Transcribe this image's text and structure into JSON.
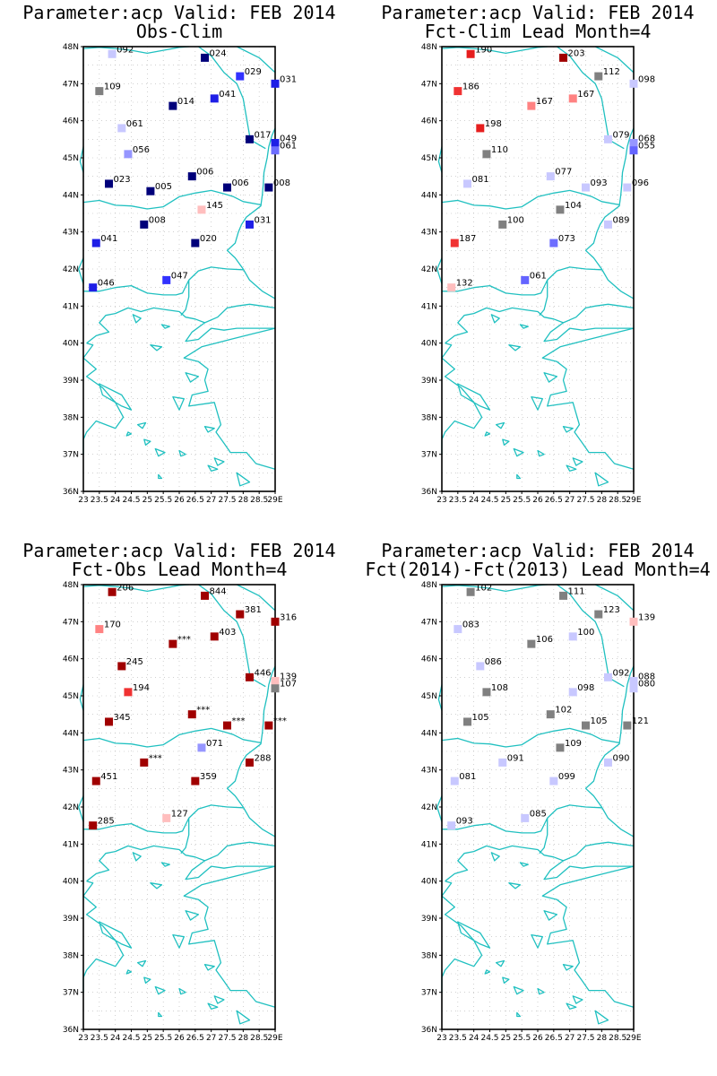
{
  "map": {
    "lon_range": [
      23,
      29
    ],
    "lat_range": [
      36,
      48
    ],
    "lat_labels": [
      "36N",
      "37N",
      "38N",
      "39N",
      "40N",
      "41N",
      "42N",
      "43N",
      "44N",
      "45N",
      "46N",
      "47N",
      "48N"
    ],
    "lon_labels": [
      "23",
      "23.5",
      "24",
      "24.5",
      "25",
      "25.5",
      "26",
      "26.5",
      "27",
      "27.5",
      "28",
      "28.5",
      "29E"
    ],
    "grid": "dotted",
    "coast_color": "#20c0c0"
  },
  "panels": [
    {
      "title_line1": "Parameter:acp Valid: FEB 2014",
      "title_line2": "Obs-Clim",
      "stations": [
        {
          "lon": 23.9,
          "lat": 47.8,
          "label": "092",
          "color": "#c8c8ff"
        },
        {
          "lon": 26.8,
          "lat": 47.7,
          "label": "024",
          "color": "#00007a"
        },
        {
          "lon": 27.9,
          "lat": 47.2,
          "label": "029",
          "color": "#3232ff"
        },
        {
          "lon": 29.0,
          "lat": 47.0,
          "label": "031",
          "color": "#1e1ee6"
        },
        {
          "lon": 23.5,
          "lat": 46.8,
          "label": "109",
          "color": "#808080"
        },
        {
          "lon": 27.1,
          "lat": 46.6,
          "label": "041",
          "color": "#1e1ee6"
        },
        {
          "lon": 25.8,
          "lat": 46.4,
          "label": "014",
          "color": "#00007a"
        },
        {
          "lon": 24.2,
          "lat": 45.8,
          "label": "061",
          "color": "#c8c8ff"
        },
        {
          "lon": 28.2,
          "lat": 45.5,
          "label": "017",
          "color": "#00007a"
        },
        {
          "lon": 29.0,
          "lat": 45.4,
          "label": "049",
          "color": "#1e1ee6"
        },
        {
          "lon": 29.0,
          "lat": 45.2,
          "label": "061",
          "color": "#6e6eff"
        },
        {
          "lon": 24.4,
          "lat": 45.1,
          "label": "056",
          "color": "#9696ff"
        },
        {
          "lon": 26.4,
          "lat": 44.5,
          "label": "006",
          "color": "#00007a"
        },
        {
          "lon": 23.8,
          "lat": 44.3,
          "label": "023",
          "color": "#00007a"
        },
        {
          "lon": 25.1,
          "lat": 44.1,
          "label": "005",
          "color": "#00007a"
        },
        {
          "lon": 27.5,
          "lat": 44.2,
          "label": "006",
          "color": "#00007a"
        },
        {
          "lon": 28.8,
          "lat": 44.2,
          "label": "008",
          "color": "#00007a"
        },
        {
          "lon": 26.7,
          "lat": 43.6,
          "label": "145",
          "color": "#ffbebe"
        },
        {
          "lon": 24.9,
          "lat": 43.2,
          "label": "008",
          "color": "#00007a"
        },
        {
          "lon": 28.2,
          "lat": 43.2,
          "label": "031",
          "color": "#1e1ee6"
        },
        {
          "lon": 23.4,
          "lat": 42.7,
          "label": "041",
          "color": "#1e1ee6"
        },
        {
          "lon": 26.5,
          "lat": 42.7,
          "label": "020",
          "color": "#00007a"
        },
        {
          "lon": 25.6,
          "lat": 41.7,
          "label": "047",
          "color": "#3232ff"
        },
        {
          "lon": 23.3,
          "lat": 41.5,
          "label": "046",
          "color": "#1e1ee6"
        }
      ]
    },
    {
      "title_line1": "Parameter:acp Valid: FEB 2014",
      "title_line2": "Fct-Clim Lead Month=4",
      "stations": [
        {
          "lon": 23.9,
          "lat": 47.8,
          "label": "190",
          "color": "#e61e1e"
        },
        {
          "lon": 26.8,
          "lat": 47.7,
          "label": "203",
          "color": "#a00000"
        },
        {
          "lon": 27.9,
          "lat": 47.2,
          "label": "112",
          "color": "#808080"
        },
        {
          "lon": 29.0,
          "lat": 47.0,
          "label": "098",
          "color": "#c8c8ff"
        },
        {
          "lon": 23.5,
          "lat": 46.8,
          "label": "186",
          "color": "#f03232"
        },
        {
          "lon": 27.1,
          "lat": 46.6,
          "label": "167",
          "color": "#ff8282"
        },
        {
          "lon": 25.8,
          "lat": 46.4,
          "label": "167",
          "color": "#ff8282"
        },
        {
          "lon": 24.2,
          "lat": 45.8,
          "label": "198",
          "color": "#e61e1e"
        },
        {
          "lon": 28.2,
          "lat": 45.5,
          "label": "079",
          "color": "#c8c8ff"
        },
        {
          "lon": 29.0,
          "lat": 45.4,
          "label": "068",
          "color": "#9696ff"
        },
        {
          "lon": 29.0,
          "lat": 45.2,
          "label": "055",
          "color": "#6464ff"
        },
        {
          "lon": 24.4,
          "lat": 45.1,
          "label": "110",
          "color": "#808080"
        },
        {
          "lon": 26.4,
          "lat": 44.5,
          "label": "077",
          "color": "#c8c8ff"
        },
        {
          "lon": 23.8,
          "lat": 44.3,
          "label": "081",
          "color": "#c8c8ff"
        },
        {
          "lon": 27.5,
          "lat": 44.2,
          "label": "093",
          "color": "#c8c8ff"
        },
        {
          "lon": 28.8,
          "lat": 44.2,
          "label": "096",
          "color": "#c8c8ff"
        },
        {
          "lon": 26.7,
          "lat": 43.6,
          "label": "104",
          "color": "#808080"
        },
        {
          "lon": 24.9,
          "lat": 43.2,
          "label": "100",
          "color": "#808080"
        },
        {
          "lon": 28.2,
          "lat": 43.2,
          "label": "089",
          "color": "#c8c8ff"
        },
        {
          "lon": 23.4,
          "lat": 42.7,
          "label": "187",
          "color": "#f03232"
        },
        {
          "lon": 26.5,
          "lat": 42.7,
          "label": "073",
          "color": "#6e6eff"
        },
        {
          "lon": 25.6,
          "lat": 41.7,
          "label": "061",
          "color": "#6464ff"
        },
        {
          "lon": 23.3,
          "lat": 41.5,
          "label": "132",
          "color": "#ffbebe"
        }
      ]
    },
    {
      "title_line1": "Parameter:acp Valid: FEB 2014",
      "title_line2": "Fct-Obs Lead Month=4",
      "stations": [
        {
          "lon": 23.9,
          "lat": 47.8,
          "label": "206",
          "color": "#a00000"
        },
        {
          "lon": 26.8,
          "lat": 47.7,
          "label": "844",
          "color": "#a00000"
        },
        {
          "lon": 27.9,
          "lat": 47.2,
          "label": "381",
          "color": "#a00000"
        },
        {
          "lon": 29.0,
          "lat": 47.0,
          "label": "316",
          "color": "#a00000"
        },
        {
          "lon": 23.5,
          "lat": 46.8,
          "label": "170",
          "color": "#ff8282"
        },
        {
          "lon": 27.1,
          "lat": 46.6,
          "label": "403",
          "color": "#a00000"
        },
        {
          "lon": 25.8,
          "lat": 46.4,
          "label": "***",
          "color": "#a00000"
        },
        {
          "lon": 24.2,
          "lat": 45.8,
          "label": "245",
          "color": "#a00000"
        },
        {
          "lon": 28.2,
          "lat": 45.5,
          "label": "446",
          "color": "#a00000"
        },
        {
          "lon": 29.0,
          "lat": 45.4,
          "label": "139",
          "color": "#ffbebe"
        },
        {
          "lon": 29.0,
          "lat": 45.2,
          "label": "107",
          "color": "#808080"
        },
        {
          "lon": 24.4,
          "lat": 45.1,
          "label": "194",
          "color": "#f03232"
        },
        {
          "lon": 26.4,
          "lat": 44.5,
          "label": "***",
          "color": "#a00000"
        },
        {
          "lon": 23.8,
          "lat": 44.3,
          "label": "345",
          "color": "#a00000"
        },
        {
          "lon": 27.5,
          "lat": 44.2,
          "label": "***",
          "color": "#a00000"
        },
        {
          "lon": 28.8,
          "lat": 44.2,
          "label": "***",
          "color": "#a00000"
        },
        {
          "lon": 26.7,
          "lat": 43.6,
          "label": "071",
          "color": "#9696ff"
        },
        {
          "lon": 24.9,
          "lat": 43.2,
          "label": "***",
          "color": "#a00000"
        },
        {
          "lon": 28.2,
          "lat": 43.2,
          "label": "288",
          "color": "#a00000"
        },
        {
          "lon": 23.4,
          "lat": 42.7,
          "label": "451",
          "color": "#a00000"
        },
        {
          "lon": 26.5,
          "lat": 42.7,
          "label": "359",
          "color": "#a00000"
        },
        {
          "lon": 25.6,
          "lat": 41.7,
          "label": "127",
          "color": "#ffbebe"
        },
        {
          "lon": 23.3,
          "lat": 41.5,
          "label": "285",
          "color": "#a00000"
        }
      ]
    },
    {
      "title_line1": "Parameter:acp Valid: FEB 2014",
      "title_line2": "Fct(2014)-Fct(2013) Lead Month=4",
      "stations": [
        {
          "lon": 23.9,
          "lat": 47.8,
          "label": "102",
          "color": "#808080"
        },
        {
          "lon": 26.8,
          "lat": 47.7,
          "label": "111",
          "color": "#808080"
        },
        {
          "lon": 27.9,
          "lat": 47.2,
          "label": "123",
          "color": "#808080"
        },
        {
          "lon": 29.0,
          "lat": 47.0,
          "label": "139",
          "color": "#ffbebe"
        },
        {
          "lon": 23.5,
          "lat": 46.8,
          "label": "083",
          "color": "#c8c8ff"
        },
        {
          "lon": 27.1,
          "lat": 46.6,
          "label": "100",
          "color": "#c8c8ff"
        },
        {
          "lon": 25.8,
          "lat": 46.4,
          "label": "106",
          "color": "#808080"
        },
        {
          "lon": 24.2,
          "lat": 45.8,
          "label": "086",
          "color": "#c8c8ff"
        },
        {
          "lon": 28.2,
          "lat": 45.5,
          "label": "092",
          "color": "#c8c8ff"
        },
        {
          "lon": 29.0,
          "lat": 45.4,
          "label": "088",
          "color": "#c8c8ff"
        },
        {
          "lon": 29.0,
          "lat": 45.2,
          "label": "080",
          "color": "#c8c8ff"
        },
        {
          "lon": 24.4,
          "lat": 45.1,
          "label": "108",
          "color": "#808080"
        },
        {
          "lon": 27.1,
          "lat": 45.1,
          "label": "098",
          "color": "#c8c8ff"
        },
        {
          "lon": 26.4,
          "lat": 44.5,
          "label": "102",
          "color": "#808080"
        },
        {
          "lon": 23.8,
          "lat": 44.3,
          "label": "105",
          "color": "#808080"
        },
        {
          "lon": 27.5,
          "lat": 44.2,
          "label": "105",
          "color": "#808080"
        },
        {
          "lon": 28.8,
          "lat": 44.2,
          "label": "121",
          "color": "#808080"
        },
        {
          "lon": 26.7,
          "lat": 43.6,
          "label": "109",
          "color": "#808080"
        },
        {
          "lon": 24.9,
          "lat": 43.2,
          "label": "091",
          "color": "#c8c8ff"
        },
        {
          "lon": 28.2,
          "lat": 43.2,
          "label": "090",
          "color": "#c8c8ff"
        },
        {
          "lon": 23.4,
          "lat": 42.7,
          "label": "081",
          "color": "#c8c8ff"
        },
        {
          "lon": 26.5,
          "lat": 42.7,
          "label": "099",
          "color": "#c8c8ff"
        },
        {
          "lon": 25.6,
          "lat": 41.7,
          "label": "085",
          "color": "#c8c8ff"
        },
        {
          "lon": 23.3,
          "lat": 41.5,
          "label": "093",
          "color": "#c8c8ff"
        }
      ]
    }
  ]
}
